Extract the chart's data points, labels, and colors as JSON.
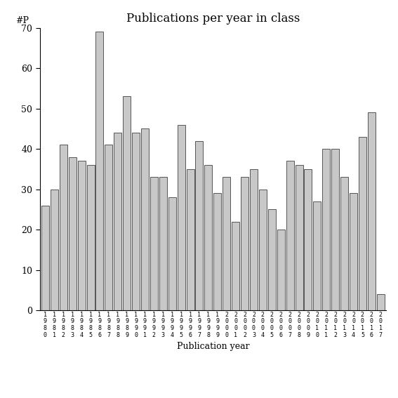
{
  "title": "Publications per year in class",
  "xlabel": "Publication year",
  "ylabel": "#P",
  "years": [
    "1980",
    "1981",
    "1982",
    "1983",
    "1984",
    "1985",
    "1986",
    "1987",
    "1988",
    "1989",
    "1990",
    "1991",
    "1992",
    "1993",
    "1994",
    "1995",
    "1996",
    "1997",
    "1998",
    "1999",
    "2000",
    "2001",
    "2002",
    "2003",
    "2004",
    "2005",
    "2006",
    "2007",
    "2008",
    "2009",
    "2010",
    "2011",
    "2012",
    "2013",
    "2014",
    "2015",
    "2016",
    "2017"
  ],
  "values": [
    26,
    30,
    41,
    38,
    37,
    36,
    69,
    41,
    44,
    53,
    44,
    45,
    33,
    33,
    28,
    46,
    35,
    42,
    36,
    29,
    33,
    22,
    33,
    35,
    30,
    25,
    20,
    37,
    36,
    35,
    27,
    40,
    40,
    33,
    29,
    43,
    49,
    4
  ],
  "bar_color": "#c8c8c8",
  "bar_edge_color": "#555555",
  "ylim": [
    0,
    70
  ],
  "yticks": [
    0,
    10,
    20,
    30,
    40,
    50,
    60,
    70
  ],
  "background_color": "#ffffff",
  "title_fontsize": 12,
  "axis_label_fontsize": 9,
  "tick_fontsize": 9,
  "xtick_fontsize": 6
}
